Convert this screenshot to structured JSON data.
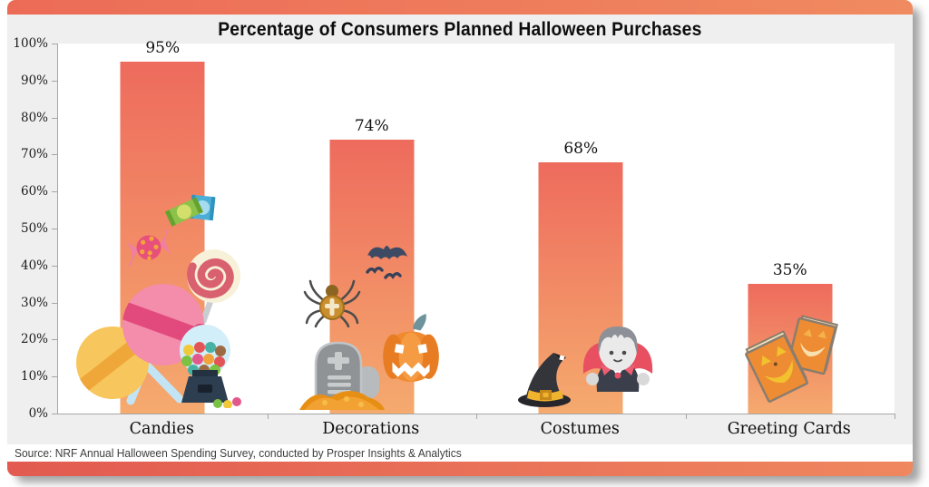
{
  "frame": {
    "background": "#efefef",
    "plot_background": "#ffffff",
    "axis_color": "#a6a6a6",
    "text_color": "#0d0d0d",
    "accent_bar_left": "#ec6b57",
    "accent_bar_right": "#f08a60"
  },
  "source_note": "Source: NRF Annual Halloween Spending Survey, conducted by Prosper Insights & Analytics",
  "chart_data": {
    "type": "bar",
    "title": "Percentage of Consumers Planned Halloween Purchases",
    "categories": [
      "Candies",
      "Decorations",
      "Costumes",
      "Greeting Cards"
    ],
    "values": [
      95,
      74,
      68,
      35
    ],
    "value_labels": [
      "95%",
      "74%",
      "68%",
      "35%"
    ],
    "xlabel": "",
    "ylabel": "",
    "ylim": [
      0,
      100
    ],
    "yticks": [
      0,
      10,
      20,
      30,
      40,
      50,
      60,
      70,
      80,
      90,
      100
    ],
    "ytick_labels": [
      "0%",
      "10%",
      "20%",
      "30%",
      "40%",
      "50%",
      "60%",
      "70%",
      "80%",
      "90%",
      "100%"
    ],
    "grid": false,
    "legend": null,
    "bar_gradient_top": "#ee6b5d",
    "bar_gradient_bottom": "#f5aa6e",
    "bar_icons": {
      "Candies": [
        "candy-bars-icon",
        "wrapped-candy-icon",
        "swirl-lollipop-icon",
        "lollipops-icon",
        "gumball-machine-icon"
      ],
      "Decorations": [
        "bats-icon",
        "spider-icon",
        "tombstone-icon",
        "jack-o-lantern-icon"
      ],
      "Costumes": [
        "witch-hat-icon",
        "vampire-icon"
      ],
      "Greeting Cards": [
        "halloween-cards-icon"
      ]
    }
  }
}
